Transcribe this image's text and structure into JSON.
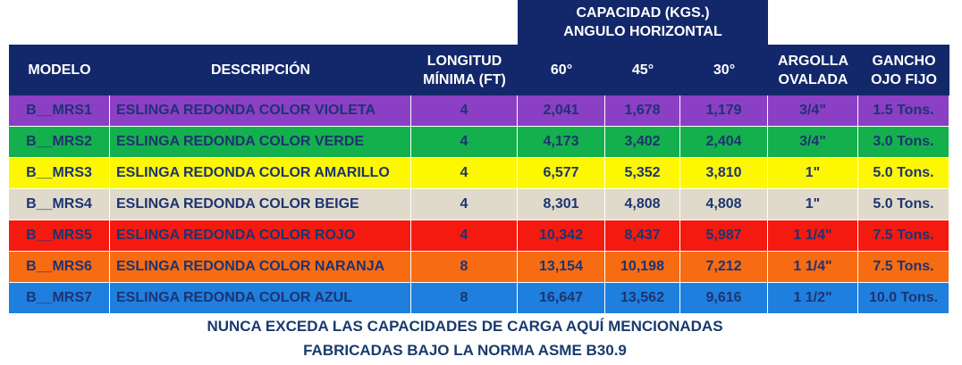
{
  "header": {
    "group_line1": "CAPACIDAD (KGS.)",
    "group_line2": "ANGULO HORIZONTAL",
    "modelo": "MODELO",
    "descripcion": "DESCRIPCIÓN",
    "longitud_line1": "LONGITUD",
    "longitud_line2": "MÍNIMA (FT)",
    "angle_60": "60°",
    "angle_45": "45°",
    "angle_30": "30°",
    "argolla_line1": "ARGOLLA",
    "argolla_line2": "OVALADA",
    "gancho_line1": "GANCHO",
    "gancho_line2": "OJO FIJO"
  },
  "rows": [
    {
      "modelo": "B__MRS1",
      "descripcion": "ESLINGA REDONDA COLOR VIOLETA",
      "longitud": "4",
      "cap_60": "2,041",
      "cap_45": "1,678",
      "cap_30": "1,179",
      "argolla": "3/4\"",
      "gancho": "1.5 Tons.",
      "color": "#8b3fc4"
    },
    {
      "modelo": "B__MRS2",
      "descripcion": "ESLINGA REDONDA COLOR VERDE",
      "longitud": "4",
      "cap_60": "4,173",
      "cap_45": "3,402",
      "cap_30": "2,404",
      "argolla": "3/4\"",
      "gancho": "3.0 Tons.",
      "color": "#14b04d"
    },
    {
      "modelo": "B__MRS3",
      "descripcion": "ESLINGA REDONDA COLOR AMARILLO",
      "longitud": "4",
      "cap_60": "6,577",
      "cap_45": "5,352",
      "cap_30": "3,810",
      "argolla": "1\"",
      "gancho": "5.0 Tons.",
      "color": "#fdf800"
    },
    {
      "modelo": "B__MRS4",
      "descripcion": "ESLINGA REDONDA COLOR BEIGE",
      "longitud": "4",
      "cap_60": "8,301",
      "cap_45": "4,808",
      "cap_30": "4,808",
      "argolla": "1\"",
      "gancho": "5.0 Tons.",
      "color": "#dfdacb"
    },
    {
      "modelo": "B__MRS5",
      "descripcion": "ESLINGA REDONDA COLOR ROJO",
      "longitud": "4",
      "cap_60": "10,342",
      "cap_45": "8,437",
      "cap_30": "5,987",
      "argolla": "1 1/4\"",
      "gancho": "7.5 Tons.",
      "color": "#f41a10"
    },
    {
      "modelo": "B__MRS6",
      "descripcion": "ESLINGA REDONDA COLOR NARANJA",
      "longitud": "8",
      "cap_60": "13,154",
      "cap_45": "10,198",
      "cap_30": "7,212",
      "argolla": "1 1/4\"",
      "gancho": "7.5 Tons.",
      "color": "#f76b12"
    },
    {
      "modelo": "B__MRS7",
      "descripcion": "ESLINGA REDONDA COLOR AZUL",
      "longitud": "8",
      "cap_60": "16,647",
      "cap_45": "13,562",
      "cap_30": "9,616",
      "argolla": "1 1/2\"",
      "gancho": "10.0 Tons.",
      "color": "#1f7fde"
    }
  ],
  "footer": {
    "line1": "NUNCA EXCEDA LAS CAPACIDADES DE CARGA AQUÍ MENCIONADAS",
    "line2": "FABRICADAS BAJO LA NORMA ASME B30.9"
  }
}
